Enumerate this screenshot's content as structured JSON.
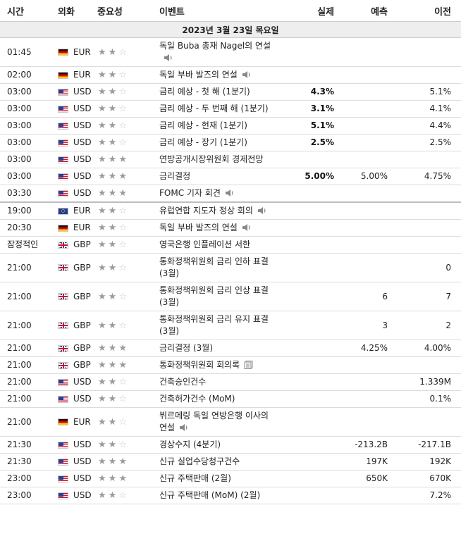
{
  "header": {
    "time": "시간",
    "currency": "외화",
    "importance": "중요성",
    "event": "이벤트",
    "actual": "실제",
    "forecast": "예측",
    "previous": "이전"
  },
  "date_label": "2023년 3월 23일 목요일",
  "colors": {
    "header_border": "#cccccc",
    "date_row_bg": "#eeeeee",
    "star_on": "#9a9a9a",
    "star_off": "#c9c9c9"
  },
  "rows": [
    {
      "time": "01:45",
      "flag": "de",
      "currency": "EUR",
      "stars": 2,
      "event": "독일 Buba 총재 Nagel의 연설",
      "icon": "speaker",
      "actual": "",
      "forecast": "",
      "previous": ""
    },
    {
      "time": "02:00",
      "flag": "de",
      "currency": "EUR",
      "stars": 2,
      "event": "독일 부바 발즈의 연설",
      "icon": "speaker",
      "actual": "",
      "forecast": "",
      "previous": ""
    },
    {
      "time": "03:00",
      "flag": "us",
      "currency": "USD",
      "stars": 2,
      "event": "금리 예상 - 첫 해 (1분기)",
      "icon": "",
      "actual": "4.3%",
      "forecast": "",
      "previous": "5.1%"
    },
    {
      "time": "03:00",
      "flag": "us",
      "currency": "USD",
      "stars": 2,
      "event": "금리 예상 - 두 번째 해 (1분기)",
      "icon": "",
      "actual": "3.1%",
      "forecast": "",
      "previous": "4.1%"
    },
    {
      "time": "03:00",
      "flag": "us",
      "currency": "USD",
      "stars": 2,
      "event": "금리 예상 - 현재 (1분기)",
      "icon": "",
      "actual": "5.1%",
      "forecast": "",
      "previous": "4.4%"
    },
    {
      "time": "03:00",
      "flag": "us",
      "currency": "USD",
      "stars": 2,
      "event": "금리 예상 - 장기 (1분기)",
      "icon": "",
      "actual": "2.5%",
      "forecast": "",
      "previous": "2.5%"
    },
    {
      "time": "03:00",
      "flag": "us",
      "currency": "USD",
      "stars": 3,
      "event": "연방공개시장위원회 경제전망",
      "icon": "",
      "actual": "",
      "forecast": "",
      "previous": ""
    },
    {
      "time": "03:00",
      "flag": "us",
      "currency": "USD",
      "stars": 3,
      "event": "금리결정",
      "icon": "",
      "actual": "5.00%",
      "forecast": "5.00%",
      "previous": "4.75%"
    },
    {
      "time": "03:30",
      "flag": "us",
      "currency": "USD",
      "stars": 3,
      "event": "FOMC 기자 회견",
      "icon": "speaker",
      "actual": "",
      "forecast": "",
      "previous": ""
    },
    {
      "time": "19:00",
      "flag": "eu",
      "currency": "EUR",
      "stars": 2,
      "event": "유럽연합 지도자 정상 회의",
      "icon": "speaker",
      "actual": "",
      "forecast": "",
      "previous": ""
    },
    {
      "time": "20:30",
      "flag": "de",
      "currency": "EUR",
      "stars": 2,
      "event": "독일 부바 발즈의 연설",
      "icon": "speaker",
      "actual": "",
      "forecast": "",
      "previous": ""
    },
    {
      "time": "잠정적인",
      "flag": "gb",
      "currency": "GBP",
      "stars": 2,
      "event": "영국은행 인플레이션 서한",
      "icon": "",
      "actual": "",
      "forecast": "",
      "previous": ""
    },
    {
      "time": "21:00",
      "flag": "gb",
      "currency": "GBP",
      "stars": 2,
      "event": "통화정책위원회 금리 인하 표결 (3월)",
      "icon": "",
      "actual": "",
      "forecast": "",
      "previous": "0"
    },
    {
      "time": "21:00",
      "flag": "gb",
      "currency": "GBP",
      "stars": 2,
      "event": "통화정책위원회 금리 인상 표결 (3월)",
      "icon": "",
      "actual": "",
      "forecast": "6",
      "previous": "7"
    },
    {
      "time": "21:00",
      "flag": "gb",
      "currency": "GBP",
      "stars": 2,
      "event": "통화정책위원회 금리 유지 표결 (3월)",
      "icon": "",
      "actual": "",
      "forecast": "3",
      "previous": "2"
    },
    {
      "time": "21:00",
      "flag": "gb",
      "currency": "GBP",
      "stars": 3,
      "event": "금리결정 (3월)",
      "icon": "",
      "actual": "",
      "forecast": "4.25%",
      "previous": "4.00%"
    },
    {
      "time": "21:00",
      "flag": "gb",
      "currency": "GBP",
      "stars": 3,
      "event": "통화정책위원회 회의록",
      "icon": "doc",
      "actual": "",
      "forecast": "",
      "previous": ""
    },
    {
      "time": "21:00",
      "flag": "us",
      "currency": "USD",
      "stars": 2,
      "event": "건축승인건수",
      "icon": "",
      "actual": "",
      "forecast": "",
      "previous": "1.339M"
    },
    {
      "time": "21:00",
      "flag": "us",
      "currency": "USD",
      "stars": 2,
      "event": "건축허가건수 (MoM)",
      "icon": "",
      "actual": "",
      "forecast": "",
      "previous": "0.1%"
    },
    {
      "time": "21:00",
      "flag": "de",
      "currency": "EUR",
      "stars": 2,
      "event": "뷔르메링 독일 연방은행 이사의 연설",
      "icon": "speaker",
      "actual": "",
      "forecast": "",
      "previous": ""
    },
    {
      "time": "21:30",
      "flag": "us",
      "currency": "USD",
      "stars": 2,
      "event": "경상수지 (4분기)",
      "icon": "",
      "actual": "",
      "forecast": "-213.2B",
      "previous": "-217.1B"
    },
    {
      "time": "21:30",
      "flag": "us",
      "currency": "USD",
      "stars": 3,
      "event": "신규 실업수당청구건수",
      "icon": "",
      "actual": "",
      "forecast": "197K",
      "previous": "192K"
    },
    {
      "time": "23:00",
      "flag": "us",
      "currency": "USD",
      "stars": 3,
      "event": "신규 주택판매 (2월)",
      "icon": "",
      "actual": "",
      "forecast": "650K",
      "previous": "670K"
    },
    {
      "time": "23:00",
      "flag": "us",
      "currency": "USD",
      "stars": 2,
      "event": "신규 주택판매 (MoM) (2월)",
      "icon": "",
      "actual": "",
      "forecast": "",
      "previous": "7.2%"
    }
  ]
}
